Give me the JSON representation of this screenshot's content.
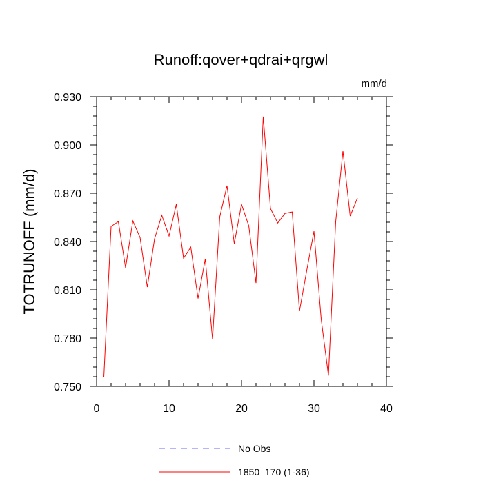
{
  "chart_data": {
    "type": "line",
    "title": "Runoff:qover+qdrai+qrgwl",
    "units": "mm/d",
    "ylabel": "TOTRUNOFF  (mm/d)",
    "xlim": [
      0,
      40
    ],
    "ylim": [
      0.75,
      0.93
    ],
    "xticks": [
      0,
      10,
      20,
      30,
      40
    ],
    "yticks": [
      0.75,
      0.78,
      0.81,
      0.84,
      0.87,
      0.9,
      0.93
    ],
    "xtick_labels": [
      "0",
      "10",
      "20",
      "30",
      "40"
    ],
    "ytick_labels": [
      "0.750",
      "0.780",
      "0.810",
      "0.840",
      "0.870",
      "0.900",
      "0.930"
    ],
    "grid": false,
    "legend_position": "bottom",
    "series": [
      {
        "name": "1850_170 (1-36)",
        "color": "#ff0000",
        "style": "solid",
        "x": [
          1,
          2,
          3,
          4,
          5,
          6,
          7,
          8,
          9,
          10,
          11,
          12,
          13,
          14,
          15,
          16,
          17,
          18,
          19,
          20,
          21,
          22,
          23,
          24,
          25,
          26,
          27,
          28,
          29,
          30,
          31,
          32,
          33,
          34,
          35,
          36
        ],
        "y": [
          0.7558,
          0.8494,
          0.8524,
          0.8237,
          0.8528,
          0.8425,
          0.8117,
          0.8417,
          0.8563,
          0.8434,
          0.8631,
          0.8296,
          0.8365,
          0.8046,
          0.8292,
          0.7793,
          0.8554,
          0.8747,
          0.8387,
          0.8631,
          0.8498,
          0.8142,
          0.9176,
          0.8605,
          0.8515,
          0.8575,
          0.8584,
          0.7968,
          0.8219,
          0.8464,
          0.7917,
          0.7567,
          0.8524,
          0.8961,
          0.8558,
          0.867
        ]
      }
    ],
    "legend": [
      {
        "label": "No Obs",
        "color": "#6b6bff",
        "style": "dashed"
      },
      {
        "label": "1850_170 (1-36)",
        "color": "#ff0000",
        "style": "solid"
      }
    ]
  }
}
